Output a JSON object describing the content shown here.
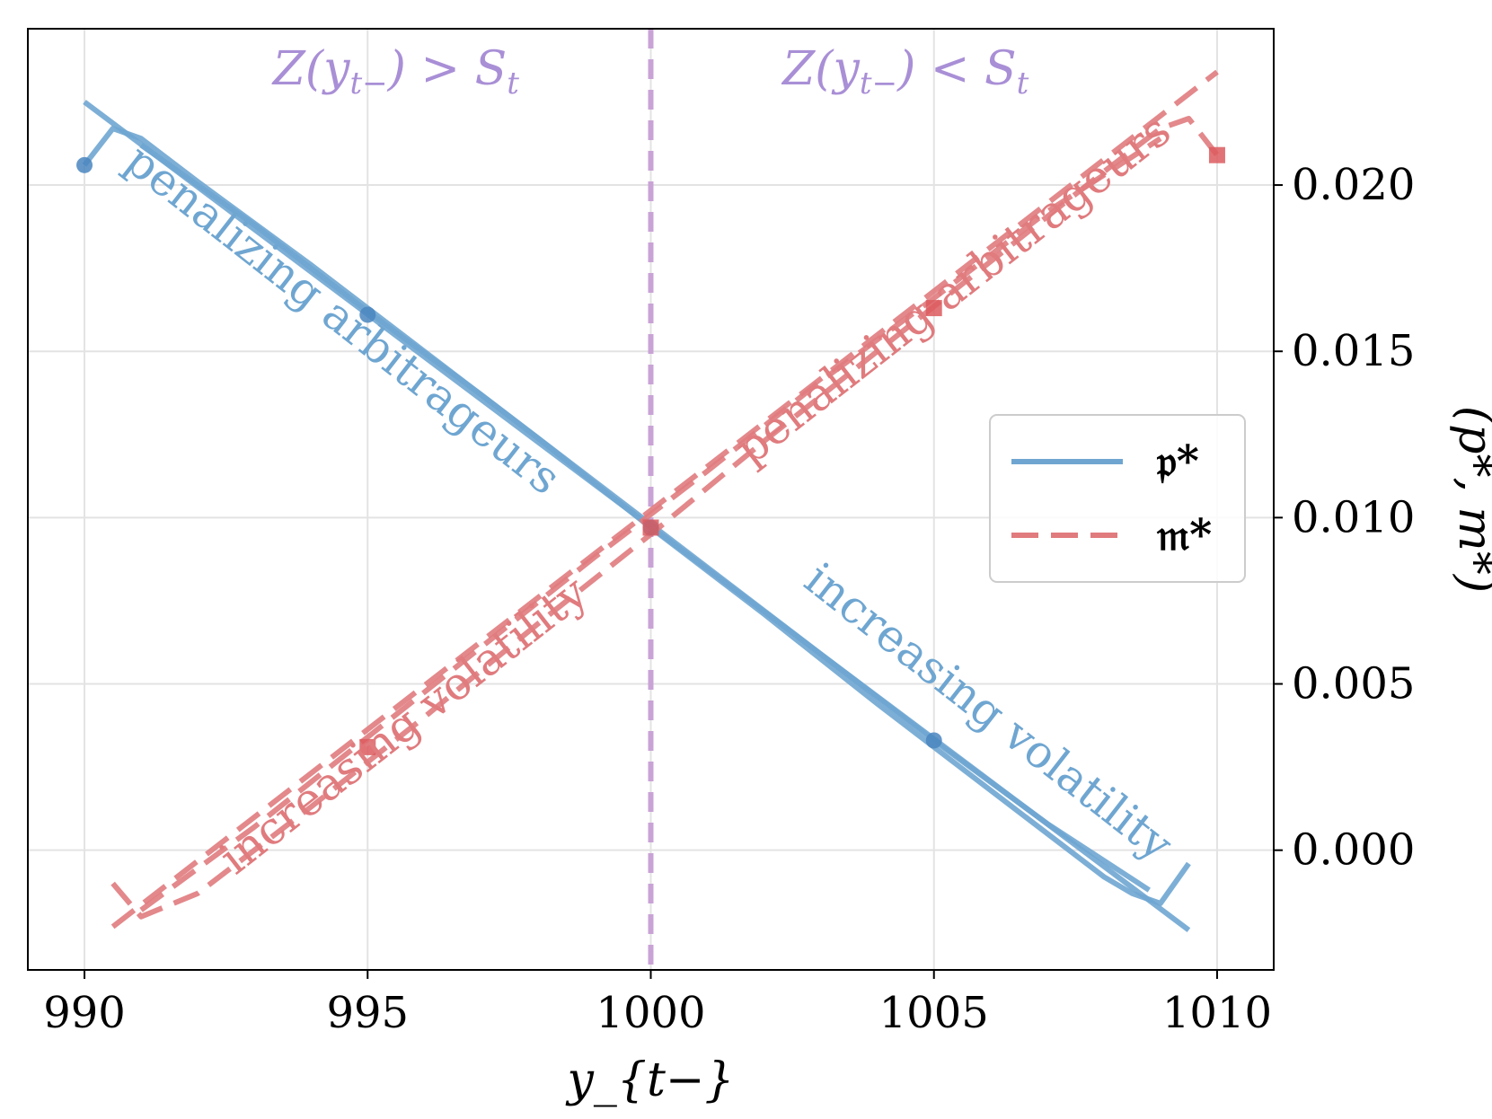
{
  "chart_data": {
    "type": "line",
    "xlabel": "y_{t−}",
    "ylabel": "(p*, m*)",
    "xlim": [
      989,
      1011
    ],
    "ylim": [
      -0.0036,
      0.0247
    ],
    "x_ticks": [
      990,
      995,
      1000,
      1005,
      1010
    ],
    "x_tick_labels": [
      "990",
      "995",
      "1000",
      "1005",
      "1010"
    ],
    "y_ticks": [
      0.0,
      0.005,
      0.01,
      0.015,
      0.02
    ],
    "y_tick_labels": [
      "0.000",
      "0.005",
      "0.010",
      "0.015",
      "0.020"
    ],
    "y_axis_side": "right",
    "grid": true,
    "vline": {
      "x": 1000,
      "color": "#c9a3d6"
    },
    "region_labels": {
      "left": {
        "prefix": "Z(y",
        "sub": "t−",
        "suffix": ") > S",
        "sub2": "t"
      },
      "right": {
        "prefix": "Z(y",
        "sub": "t−",
        "suffix": ") < S",
        "sub2": "t"
      }
    },
    "series": [
      {
        "name": "p*",
        "legend_label": "𝔭*",
        "color": "#6fa6d1",
        "style": "solid",
        "marker": "circle",
        "marker_color": "#4a86bf",
        "lines": [
          {
            "x": [
              990,
              1009.5
            ],
            "y": [
              0.0225,
              -0.0024
            ]
          },
          {
            "x": [
              990,
              990.5,
              991,
              992,
              994,
              996,
              998,
              1000,
              1002,
              1004,
              1006,
              1008,
              1008.5,
              1009,
              1009.5
            ],
            "y": [
              0.0206,
              0.0217,
              0.0214,
              0.0201,
              0.0176,
              0.015,
              0.0124,
              0.0097,
              0.0071,
              0.0044,
              0.0018,
              -0.0008,
              -0.0013,
              -0.0016,
              -0.0004
            ]
          },
          {
            "x": [
              991,
              993,
              995,
              997,
              999,
              1001,
              1003,
              1005,
              1007,
              1008.8
            ],
            "y": [
              0.0212,
              0.0188,
              0.0162,
              0.0137,
              0.0111,
              0.0085,
              0.0059,
              0.0033,
              0.0008,
              -0.0012
            ]
          }
        ],
        "markers": {
          "x": [
            990,
            995,
            1000,
            1005
          ],
          "y": [
            0.0206,
            0.0161,
            0.0097,
            0.0033
          ]
        }
      },
      {
        "name": "m*",
        "legend_label": "𝔪*",
        "color": "#e07b7e",
        "style": "dashed",
        "marker": "square",
        "marker_color": "#dc5a5e",
        "lines": [
          {
            "x": [
              990.5,
              1010
            ],
            "y": [
              -0.0023,
              0.0234
            ]
          },
          {
            "x": [
              990.5,
              991,
              992,
              994,
              996,
              998,
              1000,
              1002,
              1004,
              1006,
              1008,
              1009,
              1009.5,
              1010
            ],
            "y": [
              -0.001,
              -0.002,
              -0.0013,
              0.0013,
              0.004,
              0.0068,
              0.0095,
              0.0123,
              0.015,
              0.0177,
              0.0204,
              0.0217,
              0.022,
              0.0209
            ]
          },
          {
            "x": [
              991,
              993,
              995,
              997,
              999,
              1001,
              1003,
              1005,
              1007,
              1009
            ],
            "y": [
              -0.0018,
              0.0007,
              0.0034,
              0.0061,
              0.0088,
              0.0114,
              0.0141,
              0.0166,
              0.0192,
              0.0214
            ]
          }
        ],
        "markers": {
          "x": [
            995,
            1000,
            1005,
            1010
          ],
          "y": [
            0.0031,
            0.0097,
            0.0163,
            0.0209
          ]
        }
      }
    ],
    "annotations": [
      {
        "text": "penalizing arbitrageurs",
        "color": "#6fa6d1",
        "x": 994.4,
        "y": 0.0156,
        "angle": 38
      },
      {
        "text": "penalizing arbitrageurs",
        "color": "#e07b7e",
        "x": 1005.5,
        "y": 0.0165,
        "angle": -38
      },
      {
        "text": "increasing volatility",
        "color": "#e07b7e",
        "x": 995.8,
        "y": 0.0034,
        "angle": -38
      },
      {
        "text": "increasing volatility",
        "color": "#6fa6d1",
        "x": 1005.8,
        "y": 0.0038,
        "angle": 38
      }
    ],
    "legend": {
      "placement": "center-right"
    }
  }
}
